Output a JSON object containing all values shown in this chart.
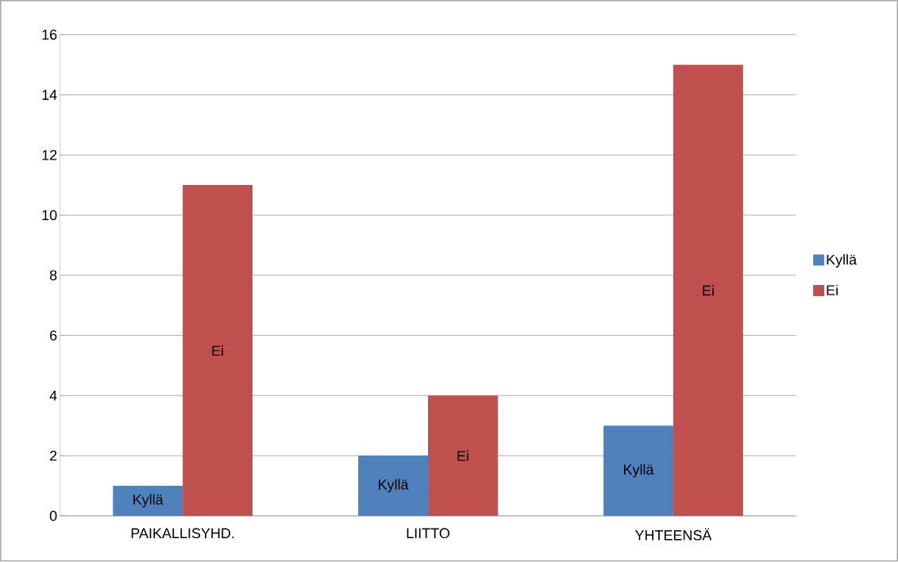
{
  "chart_data": {
    "type": "bar",
    "categories": [
      "PAIKALLISYHD.",
      "LIITTO",
      "YHTEENSÄ"
    ],
    "series": [
      {
        "name": "Kyllä",
        "color": "#4f81bd",
        "values": [
          1,
          2,
          3
        ],
        "value_labels": [
          "Kyllä",
          "Kyllä",
          "Kyllä"
        ]
      },
      {
        "name": "Ei",
        "color": "#c0504d",
        "values": [
          11,
          4,
          15
        ],
        "value_labels": [
          "Ei",
          "Ei",
          "Ei"
        ]
      }
    ],
    "ylim": [
      0,
      16
    ],
    "yticks": [
      0,
      2,
      4,
      6,
      8,
      10,
      12,
      14,
      16
    ],
    "grid": "y",
    "legend": "right"
  }
}
